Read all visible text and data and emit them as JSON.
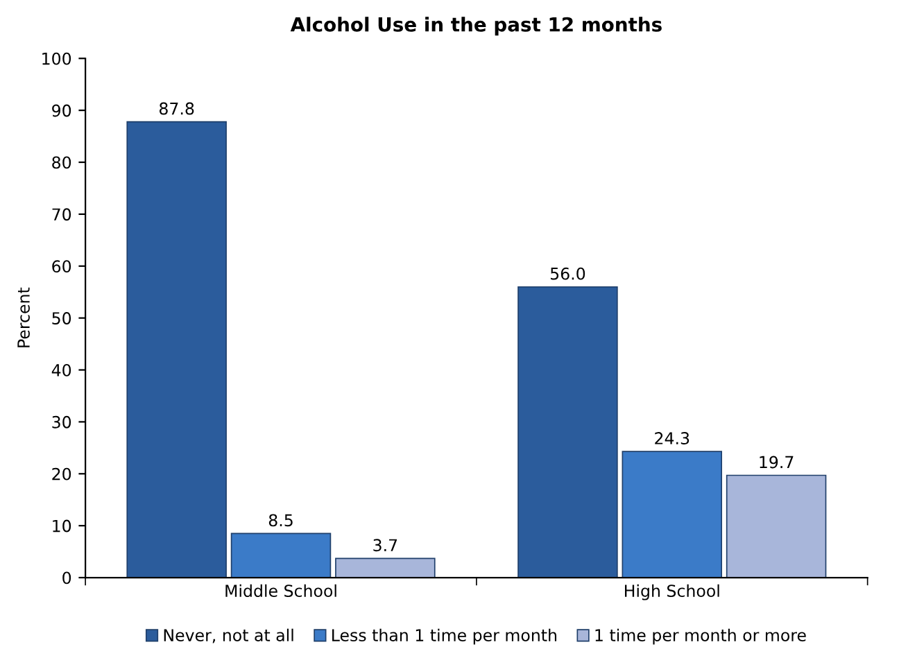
{
  "chart_data": {
    "type": "bar",
    "title": "Alcohol Use in the past 12 months",
    "ylabel": "Percent",
    "categories": [
      "Middle School",
      "High School"
    ],
    "series": [
      {
        "name": "Never, not at all",
        "color": "#2b5c9c",
        "values": [
          87.8,
          56.0
        ],
        "value_labels": [
          "87.8",
          "56.0"
        ]
      },
      {
        "name": "Less than 1 time per month",
        "color": "#3b7bc8",
        "values": [
          8.5,
          24.3
        ],
        "value_labels": [
          "8.5",
          "24.3"
        ]
      },
      {
        "name": "1 time per month or more",
        "color": "#a8b6da",
        "values": [
          3.7,
          19.7
        ],
        "value_labels": [
          "3.7",
          "19.7"
        ]
      }
    ],
    "ylim": [
      0,
      100
    ],
    "yticks": [
      0,
      10,
      20,
      30,
      40,
      50,
      60,
      70,
      80,
      90,
      100
    ],
    "grid": false,
    "legend": "bottom"
  }
}
